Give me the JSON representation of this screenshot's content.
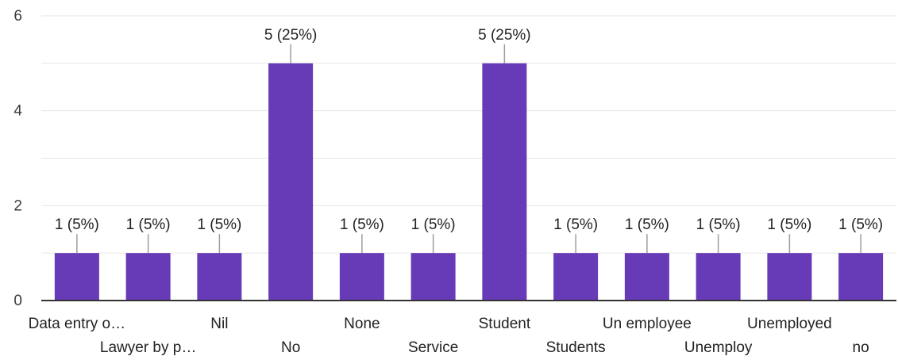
{
  "chart_data": {
    "type": "bar",
    "categories": [
      "Data entry o…",
      "Lawyer by p…",
      "Nil",
      "No",
      "None",
      "Service",
      "Student",
      "Students",
      "Un employee",
      "Unemploy",
      "Unemployed",
      "no"
    ],
    "values": [
      1,
      1,
      1,
      5,
      1,
      1,
      5,
      1,
      1,
      1,
      1,
      1
    ],
    "data_labels": [
      "1 (5%)",
      "1 (5%)",
      "1 (5%)",
      "5 (25%)",
      "1 (5%)",
      "1 (5%)",
      "5 (25%)",
      "1 (5%)",
      "1 (5%)",
      "1 (5%)",
      "1 (5%)",
      "1 (5%)"
    ],
    "yticks": [
      0,
      2,
      4,
      6
    ],
    "ylim": [
      0,
      6
    ],
    "grid": true,
    "bar_color": "#673ab7",
    "grid_color": "#e6e6e6",
    "axis_color": "#333333",
    "leader_color": "#9e9e9e"
  }
}
